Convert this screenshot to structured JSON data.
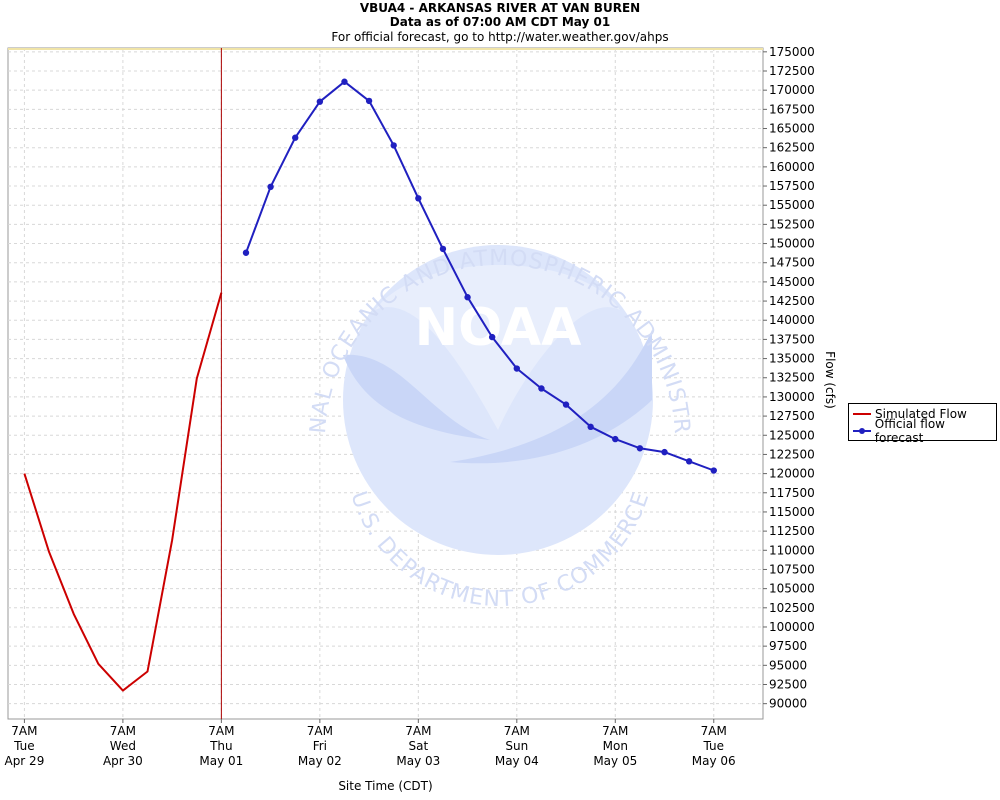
{
  "header": {
    "title": "VBUA4 - ARKANSAS RIVER AT VAN BUREN",
    "subtitle": "Data as of 07:00 AM CDT May 01",
    "note": "For official forecast, go to http://water.weather.gov/ahps"
  },
  "watermark": {
    "logo_text": "NOAA",
    "ring_top": "NATIONAL OCEANIC AND ATMOSPHERIC ADMINISTRATION",
    "ring_bottom": "U.S. DEPARTMENT OF COMMERCE"
  },
  "colors": {
    "simulated": "#cc0000",
    "forecast": "#2020c0",
    "now_line": "#aa0000",
    "grid": "#d8d8d8"
  },
  "chart_data": {
    "type": "line",
    "xlabel": "Site Time (CDT)",
    "ylabel": "Flow (cfs)",
    "y_axis_side": "right",
    "ylim": [
      88000,
      175500
    ],
    "y_ticks": [
      90000,
      92500,
      95000,
      97500,
      100000,
      102500,
      105000,
      107500,
      110000,
      112500,
      115000,
      117500,
      120000,
      122500,
      125000,
      127500,
      130000,
      132500,
      135000,
      137500,
      140000,
      142500,
      145000,
      147500,
      150000,
      152500,
      155000,
      157500,
      160000,
      162500,
      165000,
      167500,
      170000,
      172500,
      175000
    ],
    "xlim": [
      "Apr 29 03:00",
      "May 06 19:00"
    ],
    "x_ticks": [
      {
        "x": "Apr 29 07:00",
        "time": "7AM",
        "day": "Tue",
        "date": "Apr 29"
      },
      {
        "x": "Apr 30 07:00",
        "time": "7AM",
        "day": "Wed",
        "date": "Apr 30"
      },
      {
        "x": "May 01 07:00",
        "time": "7AM",
        "day": "Thu",
        "date": "May 01"
      },
      {
        "x": "May 02 07:00",
        "time": "7AM",
        "day": "Fri",
        "date": "May 02"
      },
      {
        "x": "May 03 07:00",
        "time": "7AM",
        "day": "Sat",
        "date": "May 03"
      },
      {
        "x": "May 04 07:00",
        "time": "7AM",
        "day": "Sun",
        "date": "May 04"
      },
      {
        "x": "May 05 07:00",
        "time": "7AM",
        "day": "Mon",
        "date": "May 05"
      },
      {
        "x": "May 06 07:00",
        "time": "7AM",
        "day": "Tue",
        "date": "May 06"
      }
    ],
    "now_marker": "May 01 07:00",
    "grid": true,
    "legend_position": "right",
    "series": [
      {
        "name": "Simulated Flow",
        "color": "#cc0000",
        "markers": false,
        "points": [
          [
            "Apr 29 07:00",
            120000
          ],
          [
            "Apr 29 13:00",
            109800
          ],
          [
            "Apr 29 19:00",
            101700
          ],
          [
            "Apr 30 01:00",
            95200
          ],
          [
            "Apr 30 07:00",
            91700
          ],
          [
            "Apr 30 13:00",
            94200
          ],
          [
            "Apr 30 19:00",
            111300
          ],
          [
            "May 01 01:00",
            132400
          ],
          [
            "May 01 07:00",
            143600
          ]
        ]
      },
      {
        "name": "Official flow forecast",
        "color": "#2020c0",
        "markers": true,
        "points": [
          [
            "May 01 13:00",
            148800
          ],
          [
            "May 01 19:00",
            157400
          ],
          [
            "May 02 01:00",
            163800
          ],
          [
            "May 02 07:00",
            168500
          ],
          [
            "May 02 13:00",
            171100
          ],
          [
            "May 02 19:00",
            168600
          ],
          [
            "May 03 01:00",
            162800
          ],
          [
            "May 03 07:00",
            155900
          ],
          [
            "May 03 13:00",
            149300
          ],
          [
            "May 03 19:00",
            143000
          ],
          [
            "May 04 01:00",
            137800
          ],
          [
            "May 04 07:00",
            133700
          ],
          [
            "May 04 13:00",
            131100
          ],
          [
            "May 04 19:00",
            129000
          ],
          [
            "May 05 01:00",
            126100
          ],
          [
            "May 05 07:00",
            124500
          ],
          [
            "May 05 13:00",
            123300
          ],
          [
            "May 05 19:00",
            122800
          ],
          [
            "May 06 01:00",
            121600
          ],
          [
            "May 06 07:00",
            120400
          ]
        ]
      }
    ]
  }
}
